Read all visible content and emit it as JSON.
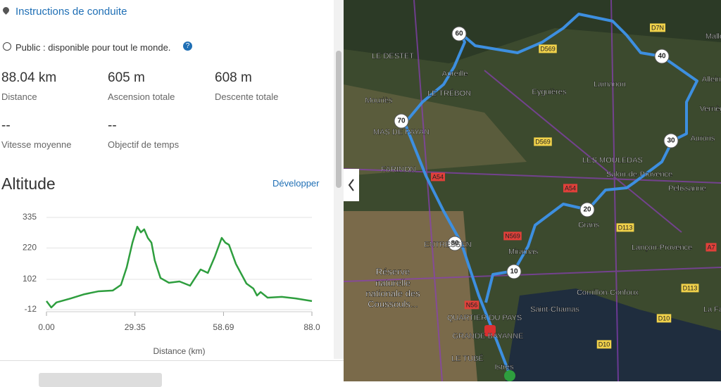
{
  "header": {
    "title": "Instructions de conduite"
  },
  "visibility": "Public : disponible pour tout le monde.",
  "stats": [
    {
      "value": "88.04 km",
      "label": "Distance"
    },
    {
      "value": "605 m",
      "label": "Ascension totale"
    },
    {
      "value": "608 m",
      "label": "Descente totale"
    },
    {
      "value": "--",
      "label": "Vitesse moyenne"
    },
    {
      "value": "--",
      "label": "Objectif de temps"
    }
  ],
  "altitude": {
    "title": "Altitude",
    "expand": "Développer"
  },
  "chart_data": {
    "type": "line",
    "xlabel": "Distance (km)",
    "color": "#2e9e3e",
    "grid": true,
    "x": [
      0,
      1.6,
      3.3,
      8,
      12.6,
      17.3,
      22,
      24.7,
      26.6,
      28.5,
      30.1,
      31.3,
      32.4,
      33.6,
      34.8,
      35.9,
      37.8,
      40.6,
      44.1,
      47.6,
      48.8,
      51.1,
      53.5,
      55.8,
      58.1,
      59.3,
      60.5,
      62.8,
      66.3,
      68.6,
      69.8,
      71,
      73.3,
      78,
      82.6,
      88
    ],
    "values": [
      20,
      -4,
      15,
      30,
      46,
      57,
      60,
      81,
      147,
      240,
      300,
      279,
      290,
      258,
      240,
      173,
      107,
      89,
      94,
      78,
      99,
      139,
      126,
      187,
      258,
      240,
      232,
      160,
      86,
      67,
      41,
      54,
      33,
      36,
      30,
      20
    ],
    "xlim": [
      0,
      88
    ],
    "ylim": [
      -12,
      335
    ],
    "xticks": [
      {
        "value": 0,
        "label": "0.00"
      },
      29.35,
      58.69,
      {
        "value": 88,
        "label": "88.0"
      }
    ],
    "yticks": [
      -12,
      102,
      220,
      335
    ]
  },
  "map": {
    "markers": [
      "60",
      "40",
      "70",
      "30",
      "20",
      "80",
      "10"
    ],
    "labels": [
      "LE DESTET",
      "Aureille",
      "LE TRÉBON",
      "Mouriès",
      "MAS DE PAYAN",
      "FARINON",
      "Eyguières",
      "Lamanon",
      "Mallen",
      "Alleins",
      "Vernègues",
      "Aurons",
      "LES MOULEDAS",
      "Salon-de-Provence",
      "Pélissanne",
      "Grans",
      "Lançon-Provence",
      "ENTRESSEN",
      "Miramas",
      "Réserve",
      "naturelle",
      "nationale des",
      "Coussouls...",
      "Cornillon-Confoux",
      "Saint-Chamas",
      "La Fare",
      "QUARTIER DU PAYS",
      "GRANDE BAYANNE",
      "LE TUBÉ",
      "Istres"
    ],
    "roads": [
      "D7N",
      "D569",
      "D569",
      "A54",
      "A54",
      "N569",
      "D113",
      "D113",
      "N56",
      "D10",
      "D10",
      "A7"
    ]
  }
}
